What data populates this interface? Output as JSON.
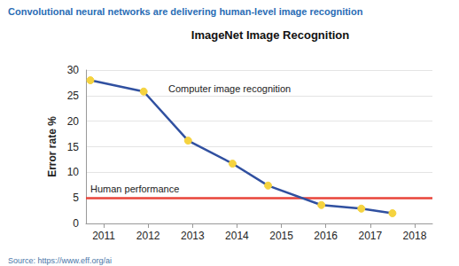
{
  "chart_data": {
    "type": "line",
    "header": "Convolutional neural networks are delivering human-level image recognition",
    "title": "ImageNet Image Recognition",
    "source": "Source: https://www.eff.org/ai",
    "y_label": "Error rate %",
    "x": [
      2010.7,
      2011.9,
      2012.9,
      2013.9,
      2014.7,
      2015.9,
      2016.8,
      2017.5
    ],
    "series": [
      {
        "name": "Computer image recognition",
        "color": "#3050a0",
        "marker": "circle",
        "values": [
          28,
          25.8,
          16.2,
          11.7,
          7.4,
          3.6,
          2.9,
          2.0
        ]
      }
    ],
    "reference_line": {
      "label": "Human performance",
      "value": 5,
      "color": "#e8443a"
    },
    "xlim": [
      2010.6,
      2018.4
    ],
    "xticks": [
      2011,
      2012,
      2013,
      2014,
      2015,
      2016,
      2017,
      2018
    ],
    "ylim": [
      0,
      30
    ],
    "yticks": [
      0,
      5,
      10,
      15,
      20,
      25,
      30
    ],
    "grid": true
  }
}
